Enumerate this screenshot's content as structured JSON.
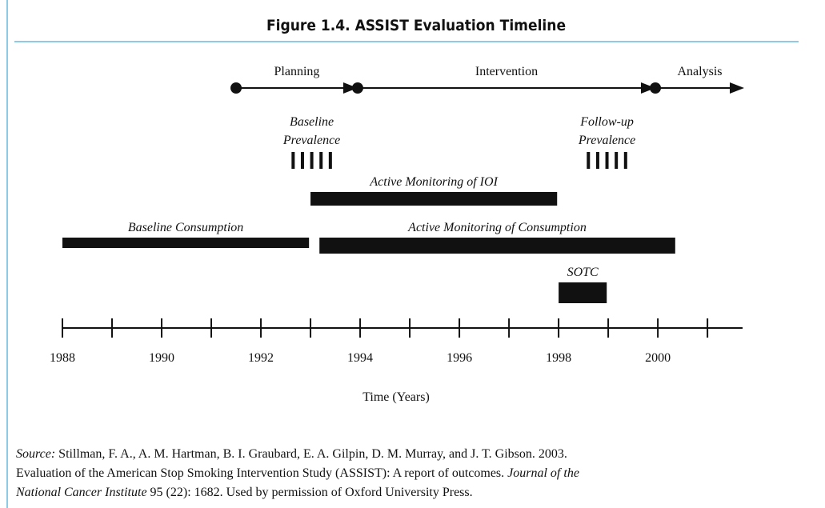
{
  "title": "Figure 1.4. ASSIST Evaluation Timeline",
  "timeline": {
    "xlim": [
      1988,
      2001.74
    ],
    "xticks": [
      1988,
      1990,
      1992,
      1994,
      1996,
      1998,
      2000
    ],
    "minor_xticks": [
      1989,
      1991,
      1993,
      1995,
      1997,
      1999,
      2001
    ],
    "xlabel": "Time (Years)",
    "phases": [
      {
        "label": "Planning",
        "start": 1991.5,
        "end": 1993.95
      },
      {
        "label": "Intervention",
        "start": 1993.95,
        "end": 1999.95
      },
      {
        "label": "Analysis",
        "start": 1999.95,
        "end": 2001.74
      }
    ],
    "surveys": [
      {
        "label": [
          "Baseline",
          "Prevalence"
        ],
        "start": 1992.65,
        "end": 1993.4
      },
      {
        "label": [
          "Follow-up",
          "Prevalence"
        ],
        "start": 1998.6,
        "end": 1999.35
      }
    ],
    "bars": [
      {
        "label": "Active Monitoring of IOI",
        "start": 1993.0,
        "end": 1997.97,
        "row": 0
      },
      {
        "label": "Baseline Consumption",
        "start": 1988.0,
        "end": 1992.97,
        "row": 1
      },
      {
        "label": "Active Monitoring of Consumption",
        "start": 1993.18,
        "end": 2000.35,
        "row": 1
      },
      {
        "label": "SOTC",
        "start": 1998.0,
        "end": 1998.97,
        "row": 2
      }
    ]
  },
  "source": [
    [
      {
        "text": "Source:",
        "italic": true
      },
      {
        "text": " Stillman, F. A., A. M. Hartman, B. I. Graubard, E. A. Gilpin, D. M. Murray, and J. T. Gibson. 2003.",
        "italic": false
      }
    ],
    [
      {
        "text": "Evaluation of the American Stop Smoking Intervention Study (ASSIST): A report of outcomes. ",
        "italic": false
      },
      {
        "text": "Journal of the",
        "italic": true
      }
    ],
    [
      {
        "text": "National Cancer Institute",
        "italic": true
      },
      {
        "text": " 95 (22): 1682. Used by permission of Oxford University Press.",
        "italic": false
      }
    ]
  ]
}
